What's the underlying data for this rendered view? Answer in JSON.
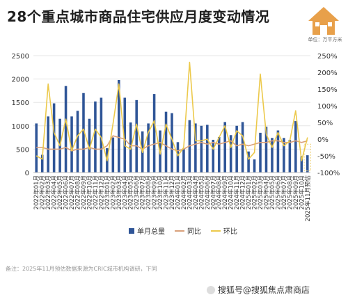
{
  "title": "28个重点城市商品住宅供应月度变动情况",
  "logo": {
    "icon": "house-logo-icon",
    "unit_text": "单位：万平方米"
  },
  "footnote": "备注：2025年11月预估数据来源为CRIC城市机构调研，下同",
  "watermark": "搜狐号@搜狐焦点肃商店",
  "colors": {
    "bar": "#2f5597",
    "yoy": "#d9a07a",
    "mom": "#ecc94b",
    "axis_text": "#333333",
    "grid": "#e6e6e6"
  },
  "chart_data": {
    "type": "bar",
    "categories": [
      "2022年01月",
      "2022年02月",
      "2022年03月",
      "2022年04月",
      "2022年05月",
      "2022年06月",
      "2022年07月",
      "2022年08月",
      "2022年09月",
      "2022年10月",
      "2022年11月",
      "2022年12月",
      "2023年01月",
      "2023年02月",
      "2023年03月",
      "2023年04月",
      "2023年05月",
      "2023年06月",
      "2023年07月",
      "2023年08月",
      "2023年09月",
      "2023年10月",
      "2023年11月",
      "2023年12月",
      "2024年01月",
      "2024年02月",
      "2024年03月",
      "2024年04月",
      "2024年05月",
      "2024年06月",
      "2024年07月",
      "2024年08月",
      "2024年09月",
      "2024年10月",
      "2024年11月",
      "2024年12月",
      "2025年01月",
      "2025年02月",
      "2025年03月",
      "2025年04月",
      "2025年05月",
      "2025年06月",
      "2025年07月",
      "2025年08月",
      "2025年09月",
      "2025年10月",
      "2025年11月预估"
    ],
    "ylim": [
      0,
      2500
    ],
    "y2lim": [
      -1.0,
      2.5
    ],
    "yticks": [
      0,
      500,
      1000,
      1500,
      2000,
      2500
    ],
    "y2ticks": [
      "-100%",
      "-50%",
      "0%",
      "50%",
      "100%",
      "150%",
      "200%",
      "250%"
    ],
    "series": [
      {
        "name": "单月总量",
        "type": "bar",
        "values": [
          1050,
          380,
          1200,
          1480,
          1150,
          1850,
          1200,
          1320,
          1700,
          1150,
          1520,
          1600,
          520,
          750,
          1980,
          1600,
          1070,
          1550,
          880,
          1050,
          1680,
          900,
          1300,
          1270,
          650,
          500,
          1120,
          1050,
          1000,
          1020,
          700,
          760,
          1080,
          800,
          1000,
          1080,
          450,
          280,
          850,
          980,
          740,
          900,
          740,
          700,
          1100,
          350,
          370
        ]
      },
      {
        "name": "同比",
        "type": "line",
        "axis": "right",
        "values": [
          -0.25,
          -0.25,
          -0.3,
          -0.3,
          -0.3,
          -0.25,
          -0.35,
          -0.3,
          -0.3,
          -0.25,
          -0.3,
          -0.3,
          -0.2,
          0.1,
          0.05,
          0.0,
          -0.2,
          -0.2,
          -0.3,
          -0.2,
          -0.15,
          -0.1,
          -0.2,
          -0.3,
          -0.35,
          -0.3,
          -0.2,
          -0.15,
          -0.1,
          -0.15,
          -0.1,
          -0.15,
          -0.1,
          -0.05,
          -0.2,
          -0.15,
          -0.2,
          -0.15,
          -0.1,
          -0.1,
          -0.05,
          -0.05,
          -0.1,
          -0.1,
          -0.05,
          -0.1,
          -0.05
        ]
      },
      {
        "name": "环比",
        "type": "line",
        "axis": "right",
        "values": [
          -0.5,
          -0.6,
          1.65,
          0.2,
          -0.2,
          0.6,
          -0.35,
          0.1,
          0.3,
          -0.3,
          0.3,
          0.05,
          -0.65,
          0.45,
          1.65,
          -0.2,
          -0.3,
          0.45,
          -0.4,
          0.2,
          0.55,
          -0.45,
          0.45,
          0.0,
          -0.5,
          -0.25,
          2.3,
          -0.05,
          -0.05,
          0.0,
          -0.3,
          0.05,
          0.4,
          -0.25,
          0.25,
          0.1,
          -0.6,
          -0.4,
          1.95,
          0.15,
          -0.25,
          0.2,
          -0.2,
          -0.05,
          0.85,
          -0.65,
          0.05
        ]
      }
    ],
    "legend": {
      "placement": "bottom-center"
    }
  }
}
